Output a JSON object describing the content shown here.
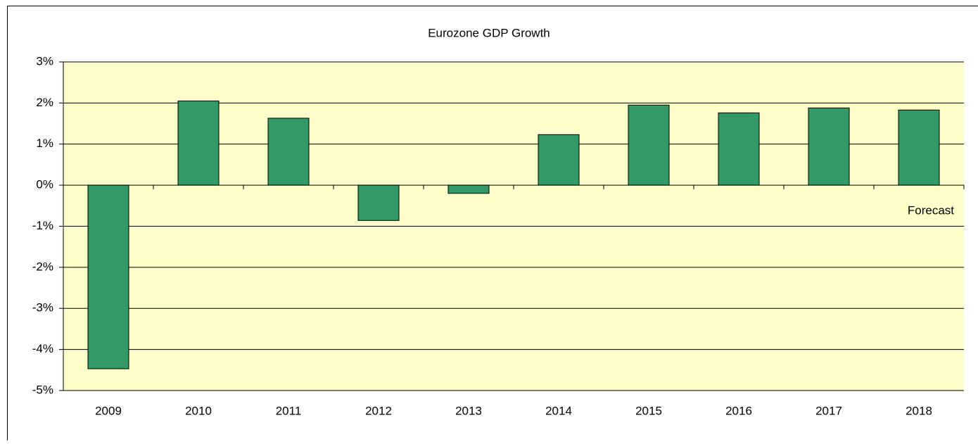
{
  "chart_data": {
    "type": "bar",
    "title": "Eurozone GDP Growth",
    "categories": [
      "2009",
      "2010",
      "2011",
      "2012",
      "2013",
      "2014",
      "2015",
      "2016",
      "2017",
      "2018"
    ],
    "values": [
      -4.47,
      2.05,
      1.63,
      -0.86,
      -0.2,
      1.23,
      1.95,
      1.76,
      1.88,
      1.83
    ],
    "color": "#339966",
    "ylim": [
      -5,
      3
    ],
    "yticks": [
      {
        "value": -5,
        "label": "-5%"
      },
      {
        "value": -4,
        "label": "-4%"
      },
      {
        "value": -3,
        "label": "-3%"
      },
      {
        "value": -2,
        "label": "-2%"
      },
      {
        "value": -1,
        "label": "-1%"
      },
      {
        "value": 0,
        "label": "0%"
      },
      {
        "value": 1,
        "label": "1%"
      },
      {
        "value": 2,
        "label": "2%"
      },
      {
        "value": 3,
        "label": "3%"
      }
    ],
    "grid": true,
    "annotation": "Forecast"
  }
}
